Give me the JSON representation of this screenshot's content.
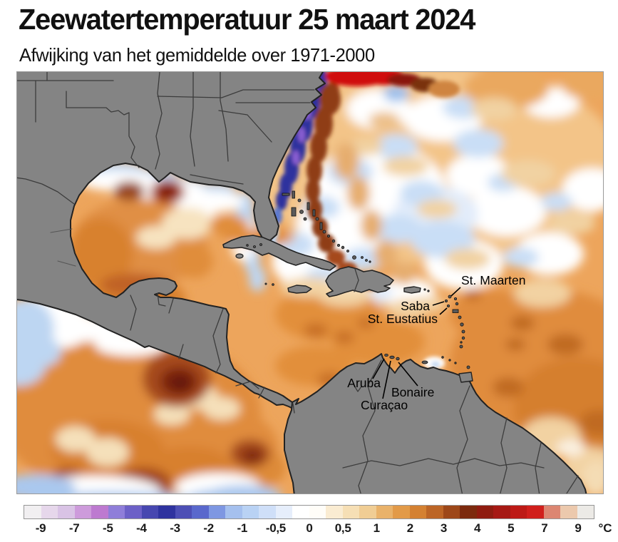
{
  "header": {
    "title": "Zeewatertemperatuur 25 maart 2024",
    "subtitle": "Afwijking van het gemiddelde over 1971-2000"
  },
  "map": {
    "labels": [
      {
        "id": "st-maarten",
        "text": "St. Maarten"
      },
      {
        "id": "saba",
        "text": "Saba"
      },
      {
        "id": "st-eustatius",
        "text": "St. Eustatius"
      },
      {
        "id": "aruba",
        "text": "Aruba"
      },
      {
        "id": "bonaire",
        "text": "Bonaire"
      },
      {
        "id": "curacao",
        "text": "Curaçao"
      }
    ],
    "land_color": "#848484",
    "coastline_color": "#222222",
    "border_color": "#3c3c3c"
  },
  "colorbar": {
    "unit": "°C",
    "ticks": [
      "-9",
      "-7",
      "-5",
      "-4",
      "-3",
      "-2",
      "-1",
      "-0,5",
      "0",
      "0,5",
      "1",
      "2",
      "3",
      "4",
      "5",
      "7",
      "9"
    ],
    "patch_colors": [
      "#f1eff1",
      "#e6d7eb",
      "#d9c3e5",
      "#cd9bdb",
      "#bd7ad0",
      "#8f7ed9",
      "#6c60c7",
      "#4747b0",
      "#2f339f",
      "#4d4fb5",
      "#5a68cc",
      "#7e97e2",
      "#a5c0ee",
      "#b9d2f4",
      "#cfdff8",
      "#e6eefb",
      "#ffffff",
      "#fffdf8",
      "#faecd2",
      "#f6dfb5",
      "#f0cd94",
      "#e9b26a",
      "#e29a48",
      "#d48132",
      "#bc6526",
      "#9d4719",
      "#7c2a0e",
      "#8f1c10",
      "#a61914",
      "#bd1a16",
      "#d01f1c",
      "#dc8672",
      "#ecc9ad",
      "#eceae6"
    ]
  }
}
